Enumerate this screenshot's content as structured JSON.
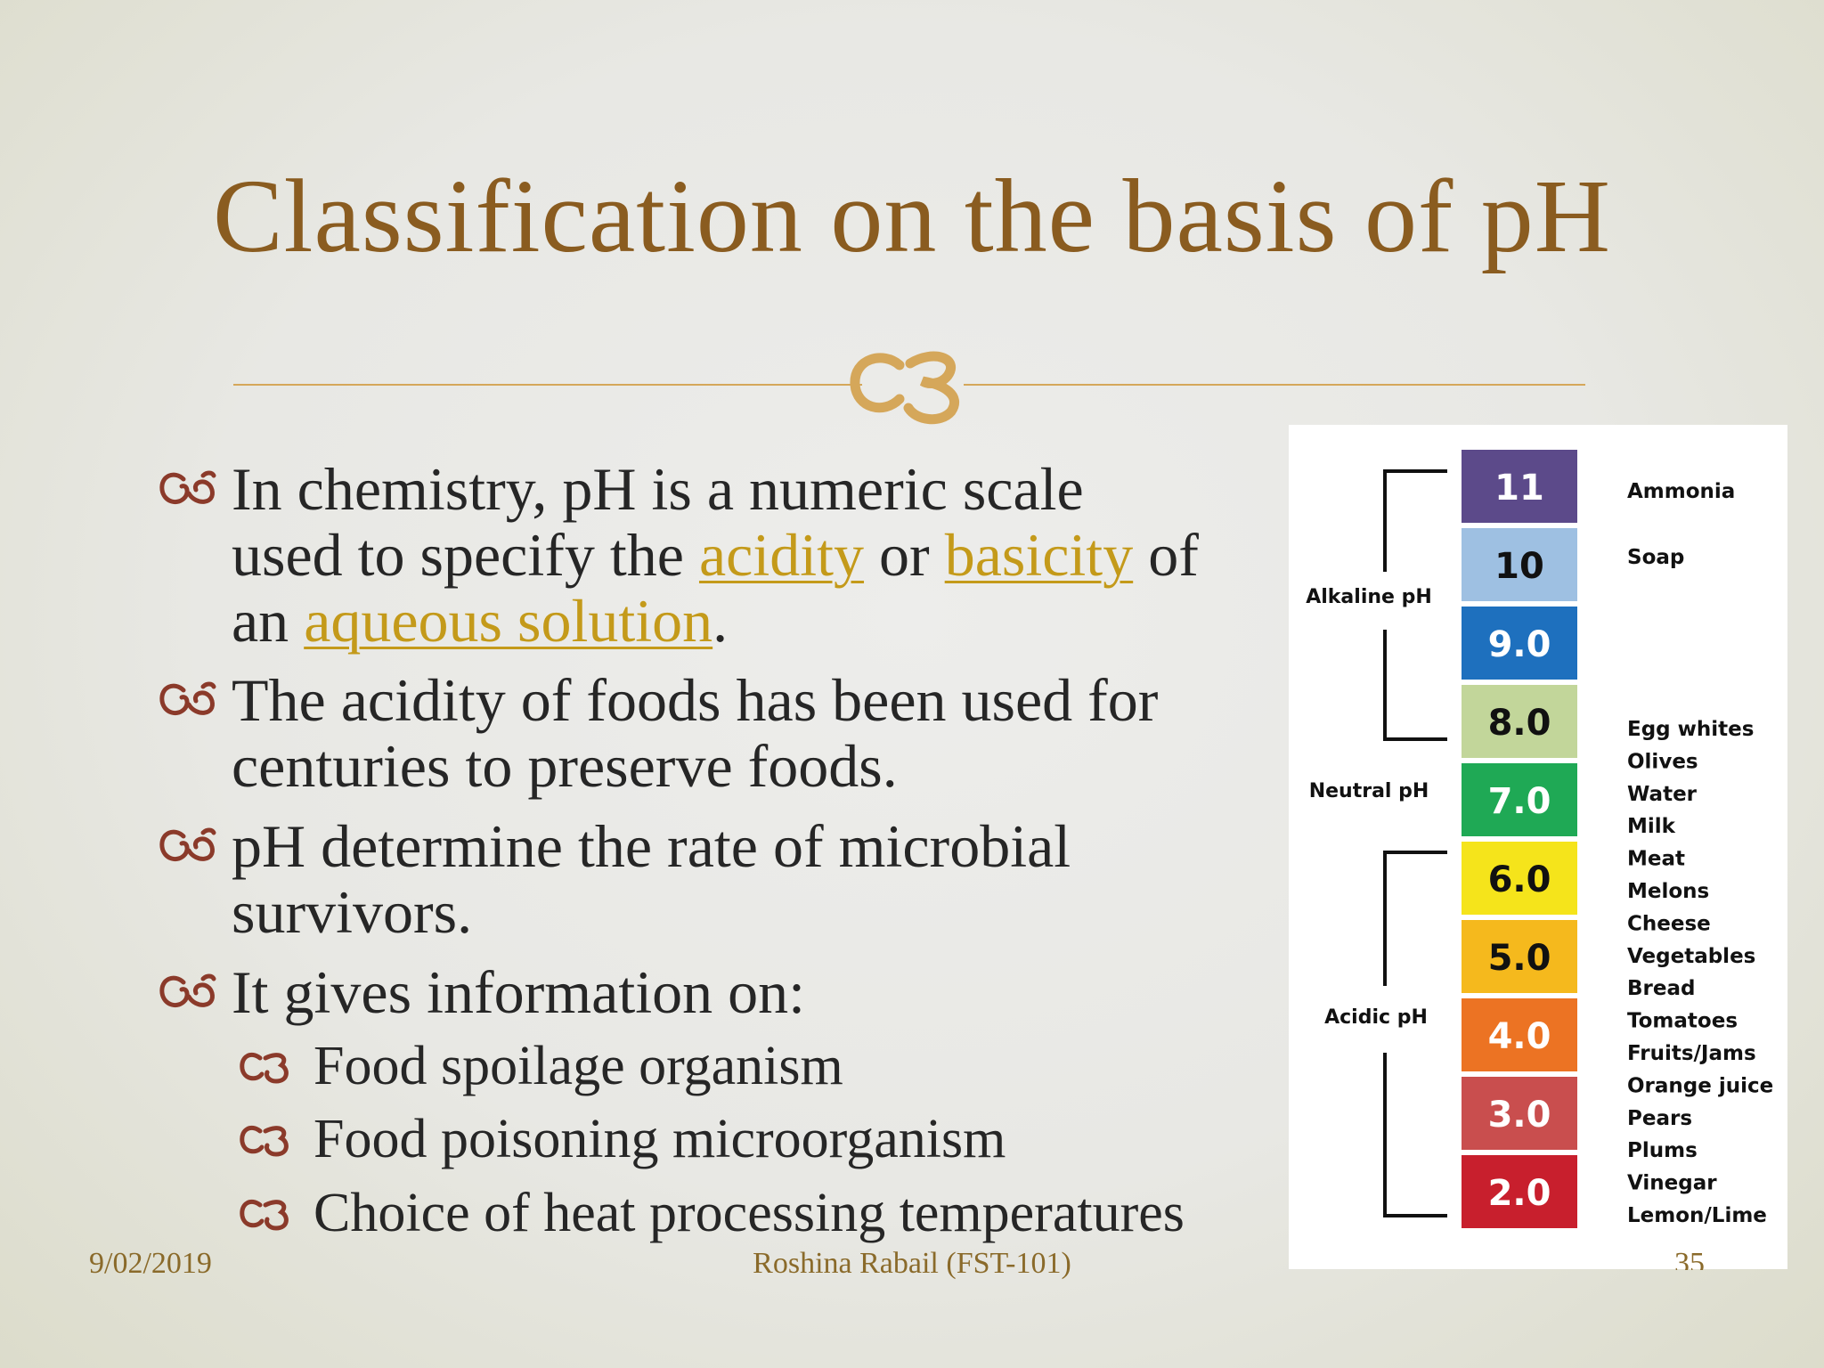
{
  "title": "Classification on the basis of pH",
  "colors": {
    "title": "#8a5c20",
    "accent_rule": "#d5a75a",
    "bullet_icon": "#8b3a2a",
    "link": "#c49a1a",
    "footer": "#8a6a2a"
  },
  "bullets": [
    {
      "icon": "curl-bullet-icon",
      "lines": [
        {
          "parts": [
            {
              "text": "In chemistry, pH is a numeric scale",
              "link": false
            }
          ]
        },
        {
          "parts": [
            {
              "text": "used to specify the ",
              "link": false
            },
            {
              "text": "acidity",
              "link": true
            },
            {
              "text": " or ",
              "link": false
            },
            {
              "text": "basicity",
              "link": true
            },
            {
              "text": " of",
              "link": false
            }
          ]
        },
        {
          "parts": [
            {
              "text": "an ",
              "link": false
            },
            {
              "text": "aqueous solution",
              "link": true
            },
            {
              "text": ".",
              "link": false
            }
          ]
        }
      ]
    },
    {
      "icon": "curl-bullet-icon",
      "lines": [
        {
          "parts": [
            {
              "text": "The acidity of foods has been used for",
              "link": false
            }
          ]
        },
        {
          "parts": [
            {
              "text": "centuries to preserve foods.",
              "link": false
            }
          ]
        }
      ]
    },
    {
      "icon": "curl-bullet-icon",
      "lines": [
        {
          "parts": [
            {
              "text": "pH determine the rate of microbial",
              "link": false
            }
          ]
        },
        {
          "parts": [
            {
              "text": "survivors.",
              "link": false
            }
          ]
        }
      ]
    },
    {
      "icon": "curl-bullet-icon",
      "lines": [
        {
          "parts": [
            {
              "text": "It gives information on:",
              "link": false
            }
          ]
        }
      ]
    }
  ],
  "sub_bullets": [
    {
      "icon": "swirl-bullet-icon",
      "text": "Food spoilage organism"
    },
    {
      "icon": "swirl-bullet-icon",
      "text": "Food poisoning microorganism"
    },
    {
      "icon": "swirl-bullet-icon",
      "text": "Choice of heat processing temperatures"
    }
  ],
  "ph_scale": {
    "levels": [
      {
        "value": "11",
        "color": "#5c4a8a",
        "text_color": "#ffffff"
      },
      {
        "value": "10",
        "color": "#9ec0e2",
        "text_color": "#111111"
      },
      {
        "value": "9.0",
        "color": "#1e70be",
        "text_color": "#ffffff"
      },
      {
        "value": "8.0",
        "color": "#c2d69a",
        "text_color": "#111111"
      },
      {
        "value": "7.0",
        "color": "#1fa955",
        "text_color": "#ffffff"
      },
      {
        "value": "6.0",
        "color": "#f5e41b",
        "text_color": "#111111"
      },
      {
        "value": "5.0",
        "color": "#f5b91d",
        "text_color": "#111111"
      },
      {
        "value": "4.0",
        "color": "#ec7323",
        "text_color": "#ffffff"
      },
      {
        "value": "3.0",
        "color": "#c94e4e",
        "text_color": "#ffffff"
      },
      {
        "value": "2.0",
        "color": "#c81f2d",
        "text_color": "#ffffff"
      }
    ],
    "groups": [
      "Alkaline pH",
      "Neutral pH",
      "Acidic pH"
    ],
    "top_examples": [
      "Ammonia",
      "Soap"
    ],
    "examples": [
      "Egg whites",
      "Olives",
      "Water",
      "Milk",
      "Meat",
      "Melons",
      "Cheese",
      "Vegetables",
      "Bread",
      "Tomatoes",
      "Fruits/Jams",
      "Orange juice",
      "Pears",
      "Plums",
      "Vinegar",
      "Lemon/Lime"
    ]
  },
  "footer": {
    "date": "9/02/2019",
    "author": "Roshina Rabail (FST-101)",
    "page": "35"
  }
}
